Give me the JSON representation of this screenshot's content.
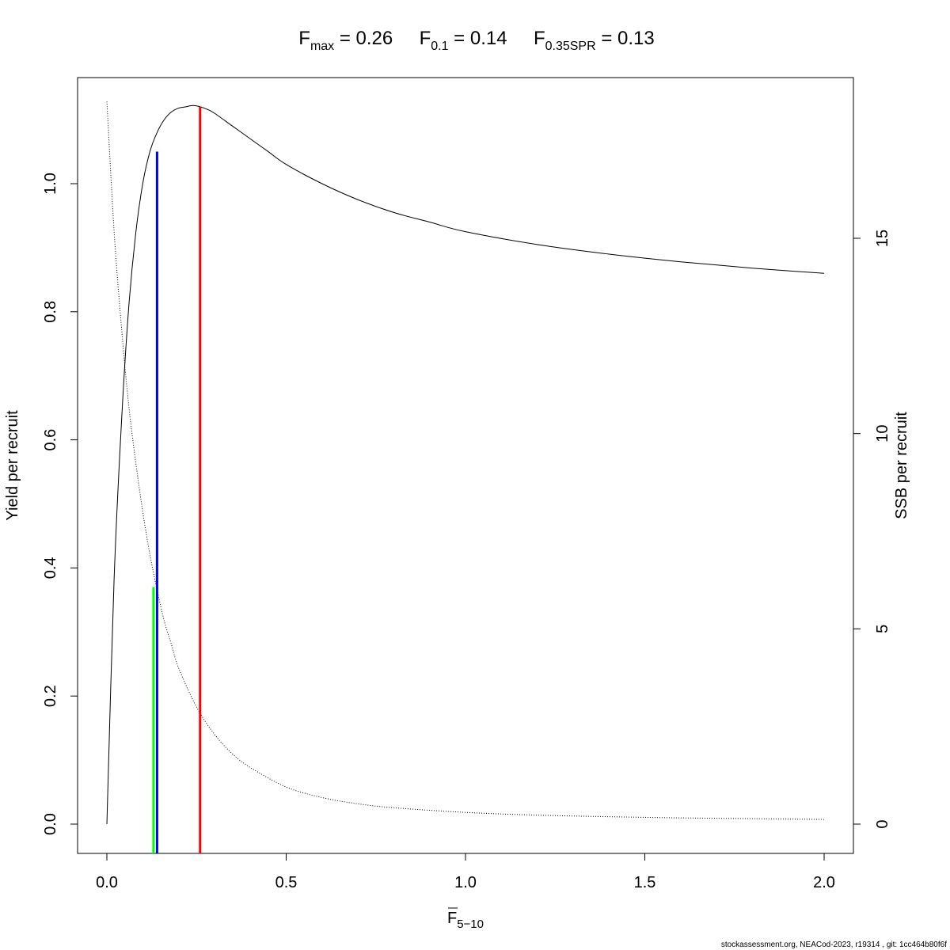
{
  "chart_data": {
    "type": "line",
    "title": {
      "fmax": {
        "symbol": "F",
        "sub": "max",
        "value": "0.26"
      },
      "f01": {
        "symbol": "F",
        "sub": "0.1",
        "value": "0.14"
      },
      "fspr": {
        "symbol": "F",
        "sub": "0.35SPR",
        "value": "0.13"
      }
    },
    "xlabel": {
      "symbol": "F",
      "sub": "5−10"
    },
    "ylabel_left": "Yield per recruit",
    "ylabel_right": "SSB per recruit",
    "xlim": [
      0.0,
      2.0
    ],
    "ylim_left": [
      0.0,
      1.12
    ],
    "ylim_right": [
      0.0,
      18.5
    ],
    "x_ticks": [
      {
        "value": 0.0,
        "label": "0.0"
      },
      {
        "value": 0.5,
        "label": "0.5"
      },
      {
        "value": 1.0,
        "label": "1.0"
      },
      {
        "value": 1.5,
        "label": "1.5"
      },
      {
        "value": 2.0,
        "label": "2.0"
      }
    ],
    "y_left_ticks": [
      {
        "value": 0.0,
        "label": "0.0"
      },
      {
        "value": 0.2,
        "label": "0.2"
      },
      {
        "value": 0.4,
        "label": "0.4"
      },
      {
        "value": 0.6,
        "label": "0.6"
      },
      {
        "value": 0.8,
        "label": "0.8"
      },
      {
        "value": 1.0,
        "label": "1.0"
      }
    ],
    "y_right_ticks": [
      {
        "value": 0,
        "label": "0"
      },
      {
        "value": 5,
        "label": "5"
      },
      {
        "value": 10,
        "label": "10"
      },
      {
        "value": 15,
        "label": "15"
      }
    ],
    "series": [
      {
        "axis": "left",
        "style": "solid",
        "color": "#000000",
        "x": [
          0.0,
          0.02,
          0.04,
          0.06,
          0.08,
          0.1,
          0.12,
          0.14,
          0.16,
          0.18,
          0.2,
          0.22,
          0.24,
          0.26,
          0.28,
          0.3,
          0.35,
          0.4,
          0.45,
          0.5,
          0.6,
          0.7,
          0.8,
          0.9,
          1.0,
          1.2,
          1.4,
          1.6,
          1.8,
          2.0
        ],
        "y": [
          0.0,
          0.38,
          0.62,
          0.8,
          0.92,
          1.0,
          1.05,
          1.08,
          1.1,
          1.112,
          1.118,
          1.12,
          1.122,
          1.12,
          1.116,
          1.11,
          1.09,
          1.07,
          1.05,
          1.03,
          1.0,
          0.975,
          0.955,
          0.94,
          0.925,
          0.905,
          0.89,
          0.878,
          0.868,
          0.86
        ]
      },
      {
        "axis": "right",
        "style": "dotted",
        "color": "#000000",
        "x": [
          0.0,
          0.02,
          0.04,
          0.06,
          0.08,
          0.1,
          0.12,
          0.14,
          0.16,
          0.18,
          0.2,
          0.25,
          0.3,
          0.35,
          0.4,
          0.5,
          0.6,
          0.7,
          0.8,
          1.0,
          1.2,
          1.4,
          1.6,
          1.8,
          2.0
        ],
        "y": [
          18.5,
          15.2,
          12.8,
          10.8,
          9.3,
          8.0,
          6.9,
          6.0,
          5.2,
          4.6,
          4.0,
          3.0,
          2.3,
          1.8,
          1.45,
          0.95,
          0.68,
          0.52,
          0.42,
          0.3,
          0.23,
          0.19,
          0.16,
          0.14,
          0.12
        ]
      }
    ],
    "reference_lines": [
      {
        "name": "F0.35SPR",
        "x": 0.13,
        "y_top": 0.37,
        "color": "#00ff00"
      },
      {
        "name": "F0.1",
        "x": 0.14,
        "y_top": 1.05,
        "color": "#0000ff"
      },
      {
        "name": "Fmax",
        "x": 0.26,
        "y_top": 1.12,
        "color": "#ff0000"
      }
    ]
  },
  "footer": "stockassessment.org, NEACod-2023, r19314 , git: 1cc464b80f6f"
}
